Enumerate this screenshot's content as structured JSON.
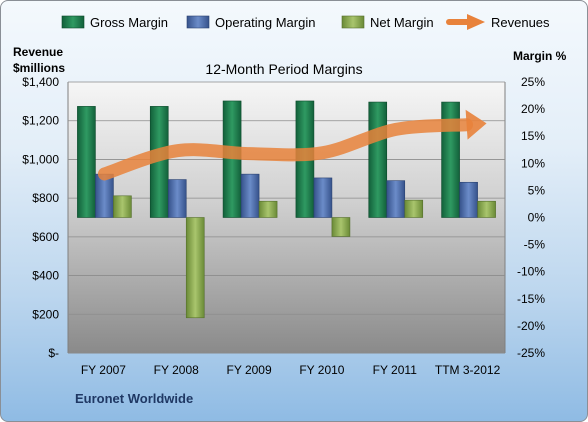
{
  "chart_data": {
    "type": "bar",
    "title": "12-Month Period Margins",
    "company": "Euronet Worldwide",
    "left_axis_label": [
      "Revenue",
      "$millions"
    ],
    "right_axis_label": "Margin %",
    "categories": [
      "FY 2007",
      "FY 2008",
      "FY 2009",
      "FY 2010",
      "FY 2011",
      "TTM 3-2012"
    ],
    "left_ylim": [
      0,
      1400
    ],
    "left_ticks": [
      "$-",
      "$200",
      "$400",
      "$600",
      "$800",
      "$1,000",
      "$1,200",
      "$1,400"
    ],
    "right_ylim": [
      -25,
      25
    ],
    "right_ticks": [
      "25%",
      "20%",
      "15%",
      "10%",
      "5%",
      "0%",
      "-5%",
      "-10%",
      "-15%",
      "-20%",
      "-25%"
    ],
    "legend_position": "top",
    "series": [
      {
        "name": "Gross Margin",
        "axis": "right",
        "kind": "bar",
        "color": "#217a4c",
        "values": [
          20.5,
          20.5,
          21.5,
          21.5,
          21.3,
          21.3
        ]
      },
      {
        "name": "Operating Margin",
        "axis": "right",
        "kind": "bar",
        "color": "#4f6faf",
        "values": [
          8.0,
          7.0,
          8.0,
          7.3,
          6.8,
          6.5
        ]
      },
      {
        "name": "Net Margin",
        "axis": "right",
        "kind": "bar",
        "color": "#8aab4c",
        "values": [
          4.0,
          -18.5,
          3.0,
          -3.5,
          3.2,
          3.0
        ]
      },
      {
        "name": "Revenues",
        "axis": "left",
        "kind": "line",
        "color": "#e8823b",
        "values": [
          925,
          1045,
          1030,
          1035,
          1155,
          1180
        ]
      }
    ]
  }
}
